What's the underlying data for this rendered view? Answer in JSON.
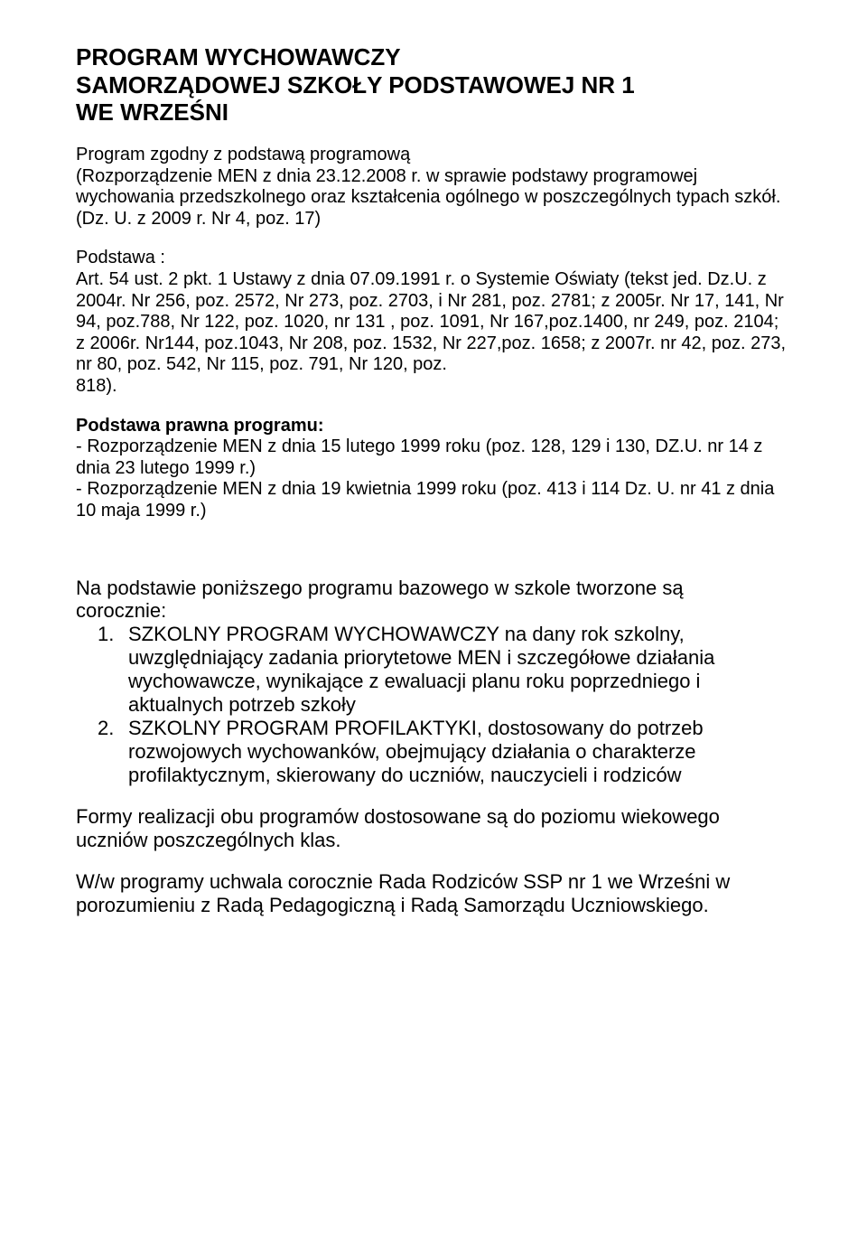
{
  "title": {
    "l1": "PROGRAM WYCHOWAWCZY",
    "l2": "SAMORZĄDOWEJ SZKOŁY PODSTAWOWEJ NR 1",
    "l3": "WE WRZEŚNI"
  },
  "intro": {
    "p1": "Program zgodny z podstawą programową",
    "p2": "(Rozporządzenie MEN z dnia 23.12.2008 r. w sprawie podstawy programowej wychowania przedszkolnego oraz kształcenia ogólnego w poszczególnych typach szkół.(Dz. U. z 2009 r. Nr 4, poz. 17)"
  },
  "podstawa": {
    "label": "Podstawa :",
    "text": "Art. 54 ust. 2 pkt. 1 Ustawy z dnia 07.09.1991 r. o Systemie Oświaty (tekst jed. Dz.U. z 2004r. Nr 256, poz. 2572, Nr 273, poz. 2703, i Nr 281, poz. 2781; z 2005r. Nr 17, 141, Nr 94, poz.788, Nr 122, poz. 1020, nr 131 , poz. 1091, Nr 167,poz.1400, nr 249, poz. 2104; z 2006r. Nr144, poz.1043, Nr 208, poz. 1532, Nr 227,poz. 1658; z 2007r. nr 42, poz. 273, nr 80, poz. 542, Nr 115, poz. 791, Nr 120, poz.",
    "last": "818)."
  },
  "prawna": {
    "heading": "Podstawa prawna programu:",
    "b1": "- Rozporządzenie MEN z dnia 15 lutego 1999 roku (poz. 128, 129 i 130, DZ.U. nr 14 z dnia 23 lutego 1999 r.)",
    "b2": "- Rozporządzenie MEN z dnia 19 kwietnia 1999 roku (poz. 413 i 114 Dz. U. nr 41 z dnia 10 maja 1999 r.)"
  },
  "na_podstawie": {
    "lead1": "Na podstawie poniższego programu bazowego w szkole tworzone są",
    "lead2": "corocznie:",
    "item1_num": "1.",
    "item1_text": "SZKOLNY PROGRAM WYCHOWAWCZY na dany rok szkolny, uwzględniający zadania priorytetowe MEN i szczegółowe działania wychowawcze, wynikające z ewaluacji planu roku poprzedniego i aktualnych potrzeb szkoły",
    "item2_num": "2.",
    "item2_text": "SZKOLNY PROGRAM PROFILAKTYKI, dostosowany do potrzeb rozwojowych wychowanków, obejmujący działania o charakterze profilaktycznym, skierowany do uczniów, nauczycieli i rodziców"
  },
  "formy": "Formy realizacji obu programów dostosowane są do poziomu wiekowego uczniów poszczególnych klas.",
  "ww": "W/w programy uchwala corocznie Rada Rodziców SSP nr 1 we Wrześni w porozumieniu z Radą Pedagogiczną i Radą Samorządu Uczniowskiego."
}
